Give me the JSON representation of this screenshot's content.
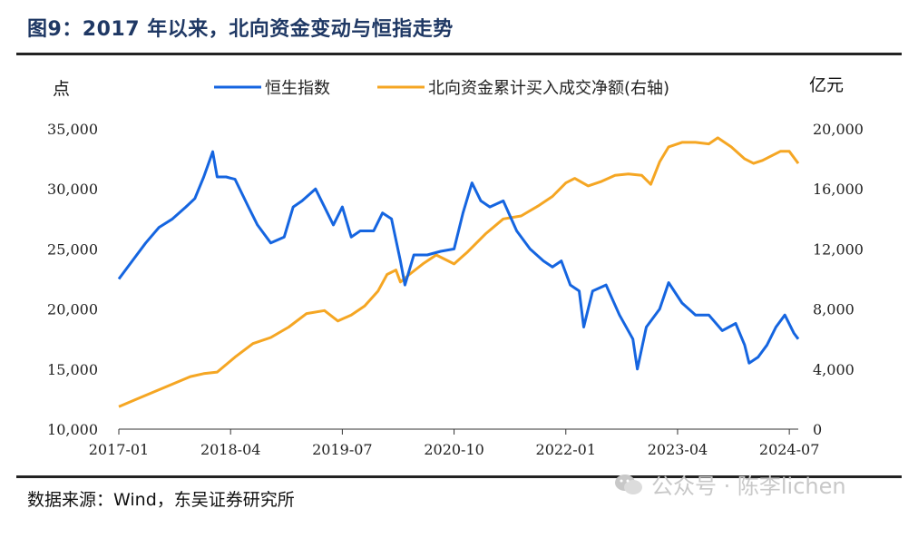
{
  "header": {
    "title": "图9：2017 年以来，北向资金变动与恒指走势"
  },
  "footer": {
    "source": "数据来源：Wind，东吴证券研究所",
    "watermark": "公众号 · 陈李lichen"
  },
  "colors": {
    "hsi": "#1565e0",
    "northbound": "#f5a623",
    "axis": "#333333"
  },
  "chart_data": {
    "type": "line",
    "left_unit": "点",
    "right_unit": "亿元",
    "x_ticks": [
      "2017-01",
      "2018-04",
      "2019-07",
      "2020-10",
      "2022-01",
      "2023-04",
      "2024-07"
    ],
    "x_tick_years": [
      2017.0,
      2018.25,
      2019.5,
      2020.75,
      2022.0,
      2023.25,
      2024.5
    ],
    "xlim": [
      2017.0,
      2024.6
    ],
    "y_left": {
      "ylim": [
        10000,
        35000
      ],
      "ticks": [
        "10,000",
        "15,000",
        "20,000",
        "25,000",
        "30,000",
        "35,000"
      ],
      "tick_values": [
        10000,
        15000,
        20000,
        25000,
        30000,
        35000
      ]
    },
    "y_right": {
      "ylim": [
        0,
        20000
      ],
      "ticks": [
        "0",
        "4,000",
        "8,000",
        "12,000",
        "16,000",
        "20,000"
      ],
      "tick_values": [
        0,
        4000,
        8000,
        12000,
        16000,
        20000
      ]
    },
    "series": [
      {
        "name": "恒生指数",
        "axis": "left",
        "x": [
          2017.0,
          2017.15,
          2017.3,
          2017.45,
          2017.6,
          2017.75,
          2017.85,
          2017.95,
          2018.05,
          2018.1,
          2018.2,
          2018.3,
          2018.45,
          2018.55,
          2018.7,
          2018.85,
          2018.95,
          2019.05,
          2019.2,
          2019.3,
          2019.4,
          2019.5,
          2019.6,
          2019.7,
          2019.85,
          2019.95,
          2020.05,
          2020.15,
          2020.2,
          2020.3,
          2020.45,
          2020.6,
          2020.75,
          2020.85,
          2020.95,
          2021.05,
          2021.15,
          2021.3,
          2021.45,
          2021.6,
          2021.75,
          2021.85,
          2021.95,
          2022.05,
          2022.15,
          2022.2,
          2022.3,
          2022.45,
          2022.6,
          2022.75,
          2022.8,
          2022.9,
          2023.05,
          2023.15,
          2023.3,
          2023.45,
          2023.6,
          2023.75,
          2023.9,
          2024.0,
          2024.05,
          2024.15,
          2024.25,
          2024.35,
          2024.45,
          2024.55,
          2024.6
        ],
        "values": [
          22500,
          24000,
          25500,
          26800,
          27500,
          28500,
          29200,
          31000,
          33100,
          31000,
          31000,
          30800,
          28500,
          27000,
          25500,
          26000,
          28500,
          29000,
          30000,
          28500,
          27000,
          28500,
          26000,
          26500,
          26500,
          28000,
          27500,
          24000,
          22000,
          24500,
          24500,
          24800,
          25000,
          28000,
          30500,
          29000,
          28500,
          29000,
          26500,
          25000,
          24000,
          23500,
          24000,
          22000,
          21500,
          18500,
          21500,
          22000,
          19500,
          17500,
          15000,
          18500,
          20000,
          22200,
          20500,
          19500,
          19500,
          18200,
          18800,
          17000,
          15500,
          16000,
          17000,
          18500,
          19500,
          18000,
          17500
        ]
      },
      {
        "name": "北向资金累计买入成交净额(右轴)",
        "axis": "right",
        "x": [
          2017.0,
          2017.2,
          2017.4,
          2017.6,
          2017.8,
          2017.95,
          2018.1,
          2018.3,
          2018.5,
          2018.7,
          2018.9,
          2019.1,
          2019.3,
          2019.45,
          2019.6,
          2019.75,
          2019.9,
          2020.0,
          2020.1,
          2020.15,
          2020.25,
          2020.4,
          2020.55,
          2020.75,
          2020.9,
          2021.1,
          2021.3,
          2021.5,
          2021.7,
          2021.85,
          2022.0,
          2022.1,
          2022.25,
          2022.4,
          2022.55,
          2022.7,
          2022.85,
          2022.95,
          2023.05,
          2023.15,
          2023.3,
          2023.45,
          2023.6,
          2023.7,
          2023.85,
          2024.0,
          2024.1,
          2024.2,
          2024.3,
          2024.4,
          2024.5,
          2024.6
        ],
        "values": [
          1500,
          2000,
          2500,
          3000,
          3500,
          3700,
          3800,
          4800,
          5700,
          6100,
          6800,
          7700,
          7900,
          7200,
          7600,
          8200,
          9200,
          10300,
          10600,
          9800,
          10300,
          11000,
          11600,
          11000,
          11800,
          13000,
          14000,
          14200,
          14900,
          15500,
          16400,
          16700,
          16200,
          16500,
          16900,
          17000,
          16900,
          16300,
          17800,
          18800,
          19100,
          19100,
          19000,
          19400,
          18800,
          18000,
          17700,
          17900,
          18200,
          18500,
          18500,
          17700
        ]
      }
    ]
  }
}
